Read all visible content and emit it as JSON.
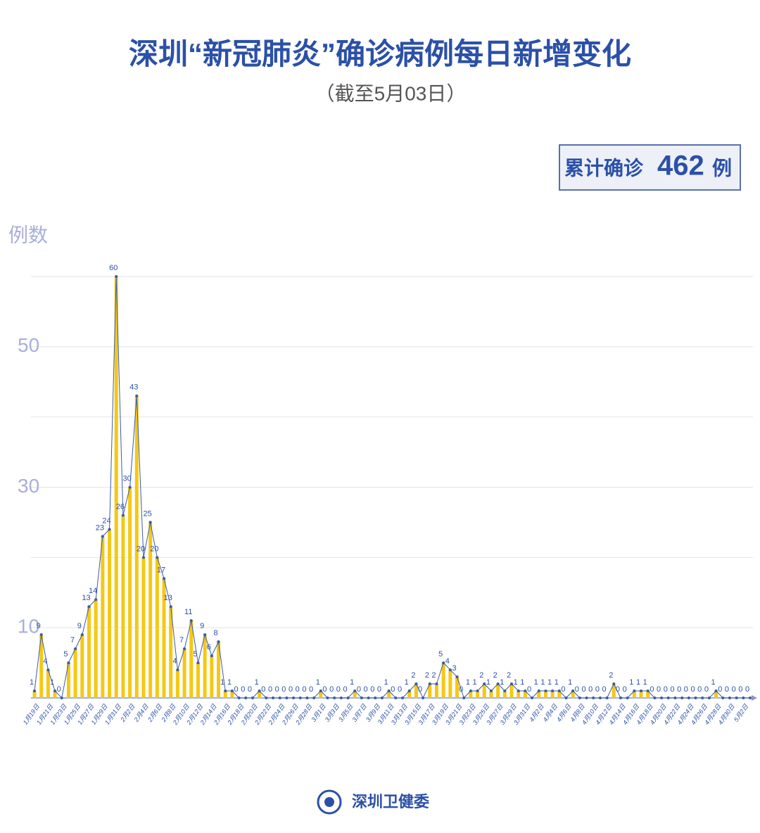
{
  "chart_data": {
    "type": "bar-line",
    "title": "深圳“新冠肺炎”确诊病例每日新增变化",
    "subtitle": "（截至5月03日）",
    "total": {
      "label": "累计确诊",
      "value": 462,
      "unit": "例"
    },
    "y_label": "例数",
    "categories": [
      "1月19日",
      null,
      "1月21日",
      null,
      "1月23日",
      null,
      "1月25日",
      null,
      "1月27日",
      null,
      "1月29日",
      null,
      "1月31日",
      null,
      "2月2日",
      null,
      "2月4日",
      null,
      "2月6日",
      null,
      "2月8日",
      null,
      "2月10日",
      null,
      "2月12日",
      null,
      "2月14日",
      null,
      "2月16日",
      null,
      "2月18日",
      null,
      "2月20日",
      null,
      "2月22日",
      null,
      "2月24日",
      null,
      "2月26日",
      null,
      "2月28日",
      null,
      "3月1日",
      null,
      "3月3日",
      null,
      "3月5日",
      null,
      "3月7日",
      null,
      "3月9日",
      null,
      "3月11日",
      null,
      "3月13日",
      null,
      "3月15日",
      null,
      "3月17日",
      null,
      "3月19日",
      null,
      "3月21日",
      null,
      "3月23日",
      null,
      "3月25日",
      null,
      "3月27日",
      null,
      "3月29日",
      null,
      "3月31日",
      null,
      "4月2日",
      null,
      "4月4日",
      null,
      "4月6日",
      null,
      "4月8日",
      null,
      "4月10日",
      null,
      "4月12日",
      null,
      "4月14日",
      null,
      "4月16日",
      null,
      "4月18日",
      null,
      "4月20日",
      null,
      "4月22日",
      null,
      "4月24日",
      null,
      "4月26日",
      null,
      "4月28日",
      null,
      "4月30日",
      null,
      "5月2日",
      null
    ],
    "values": [
      1,
      9,
      4,
      1,
      0,
      5,
      7,
      9,
      13,
      14,
      23,
      24,
      60,
      26,
      30,
      43,
      20,
      25,
      20,
      17,
      13,
      4,
      7,
      11,
      5,
      9,
      6,
      8,
      1,
      1,
      0,
      0,
      0,
      1,
      0,
      0,
      0,
      0,
      0,
      0,
      0,
      0,
      1,
      0,
      0,
      0,
      0,
      1,
      0,
      0,
      0,
      0,
      1,
      0,
      0,
      1,
      2,
      0,
      2,
      2,
      5,
      4,
      3,
      0,
      1,
      1,
      2,
      1,
      2,
      1,
      2,
      1,
      1,
      0,
      1,
      1,
      1,
      1,
      0,
      1,
      0,
      0,
      0,
      0,
      0,
      2,
      0,
      0,
      1,
      1,
      1,
      0,
      0,
      0,
      0,
      0,
      0,
      0,
      0,
      0,
      1,
      0,
      0,
      0,
      0,
      0
    ],
    "bar_color": "#f5c813",
    "line_color": "#3a5ba8",
    "ylim": [
      0,
      60
    ],
    "yticks": [
      10,
      30,
      50
    ],
    "ygrid": [
      10,
      20,
      30,
      40,
      50,
      60
    ]
  },
  "footer": "深圳卫健委"
}
